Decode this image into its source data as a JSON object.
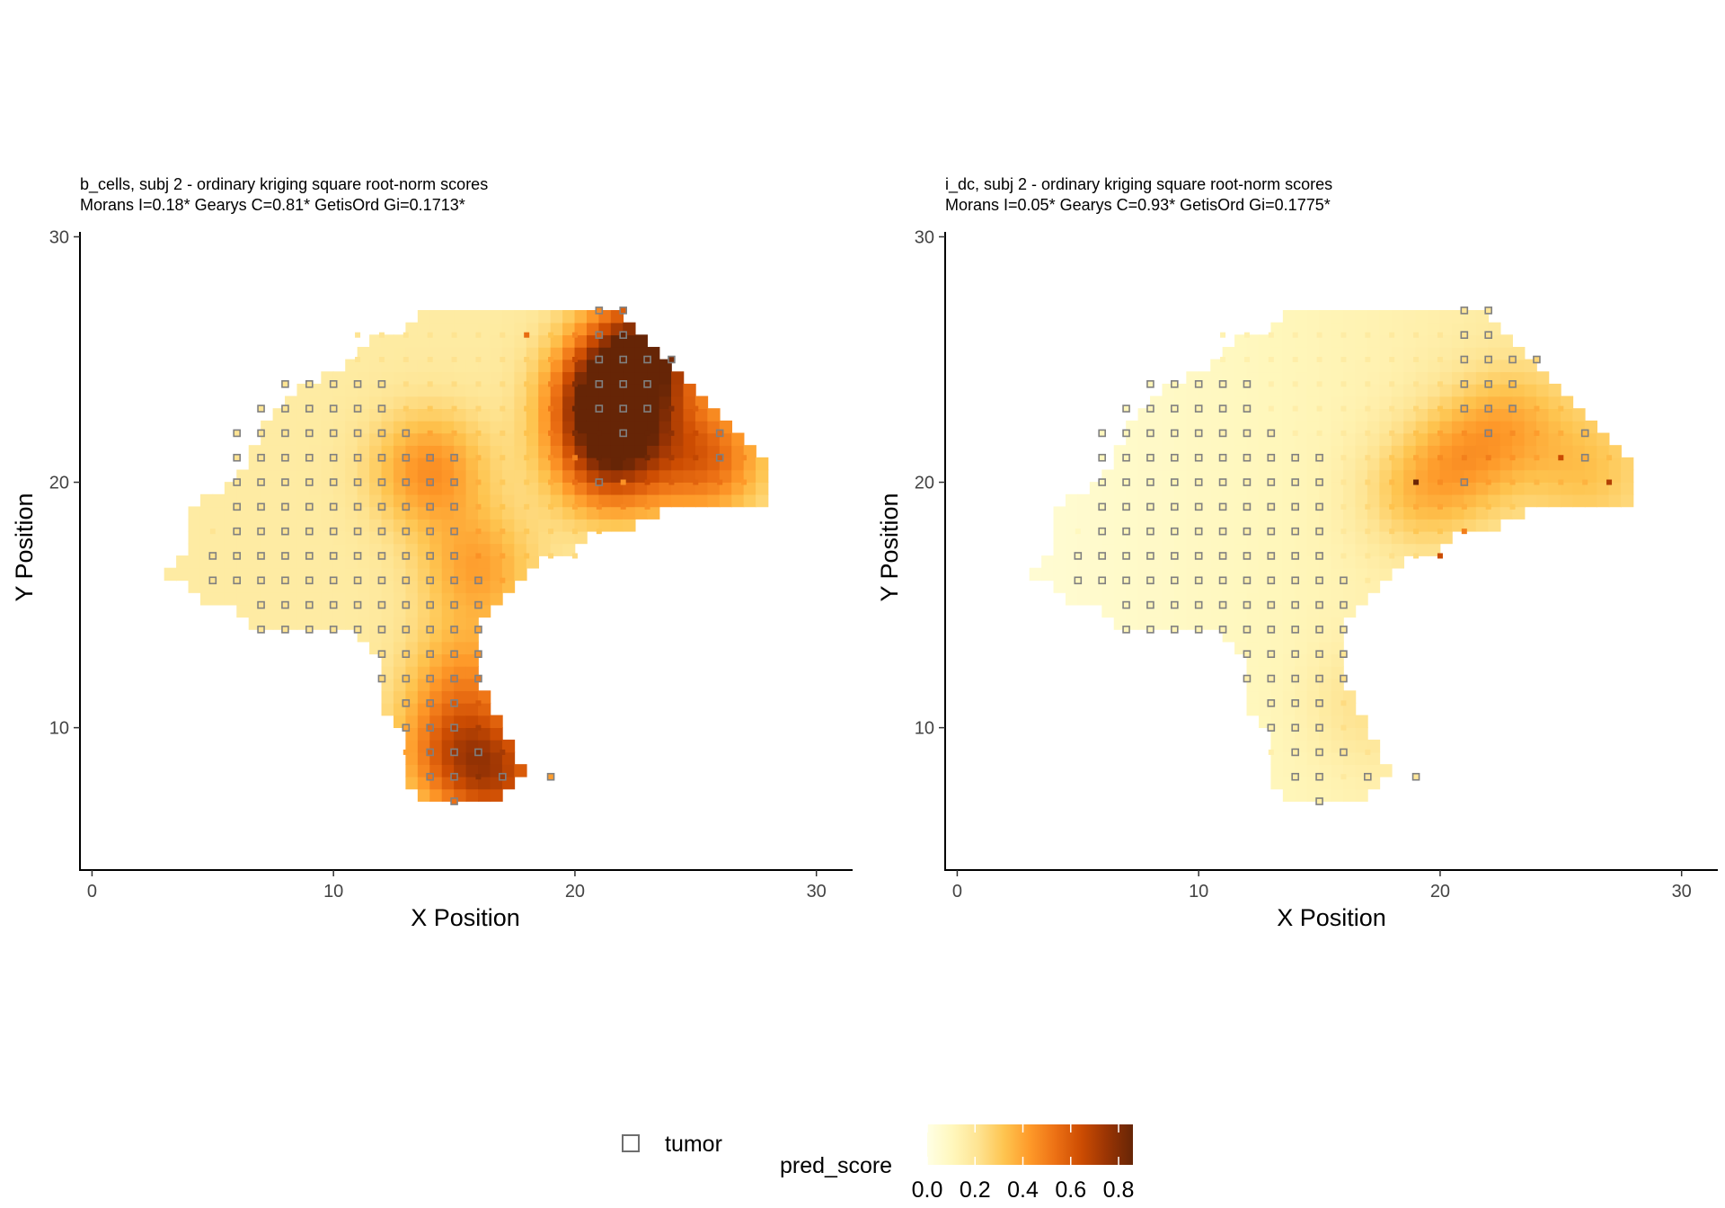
{
  "chart_data": [
    {
      "type": "heatmap",
      "title": "b_cells, subj 2 - ordinary kriging square root-norm scores",
      "subtitle": "Morans I=0.18*  Gearys C=0.81*  GetisOrd Gi=0.1713*",
      "xlabel": "X Position",
      "ylabel": "Y Position",
      "xlim": [
        -0.5,
        31.5
      ],
      "ylim": [
        4.2,
        30.2
      ],
      "xticks": [
        0,
        10,
        20,
        30
      ],
      "yticks": [
        10,
        20,
        30
      ],
      "grid": false,
      "hotspots": [
        {
          "x": 21.5,
          "y": 23.5,
          "value": 0.85
        },
        {
          "x": 21.5,
          "y": 21.0,
          "value": 0.65
        },
        {
          "x": 23.0,
          "y": 25.5,
          "value": 0.7
        },
        {
          "x": 25.5,
          "y": 21.0,
          "value": 0.55
        },
        {
          "x": 14.0,
          "y": 20.5,
          "value": 0.45
        },
        {
          "x": 16.0,
          "y": 16.5,
          "value": 0.4
        },
        {
          "x": 15.0,
          "y": 9.0,
          "value": 0.5
        },
        {
          "x": 17.0,
          "y": 8.0,
          "value": 0.55
        },
        {
          "x": 15.5,
          "y": 12.0,
          "value": 0.4
        }
      ],
      "hot_spots": [
        {
          "x": 18,
          "y": 26,
          "value": 0.55
        },
        {
          "x": 21,
          "y": 26,
          "value": 0.6
        },
        {
          "x": 20,
          "y": 21,
          "value": 0.5
        },
        {
          "x": 22,
          "y": 20,
          "value": 0.45
        }
      ]
    },
    {
      "type": "heatmap",
      "title": "i_dc, subj 2 - ordinary kriging square root-norm scores",
      "subtitle": "Morans I=0.05*  Gearys C=0.93*  GetisOrd Gi=0.1775*",
      "xlabel": "X Position",
      "ylabel": "Y Position",
      "xlim": [
        -0.5,
        31.5
      ],
      "ylim": [
        4.2,
        30.2
      ],
      "xticks": [
        0,
        10,
        20,
        30
      ],
      "yticks": [
        10,
        20,
        30
      ],
      "grid": false,
      "hotspots": [
        {
          "x": 21.0,
          "y": 21.0,
          "value": 0.28
        },
        {
          "x": 23.0,
          "y": 22.5,
          "value": 0.25
        },
        {
          "x": 19.0,
          "y": 19.5,
          "value": 0.25
        },
        {
          "x": 26.0,
          "y": 20.5,
          "value": 0.22
        },
        {
          "x": 17.0,
          "y": 11.0,
          "value": 0.18
        }
      ],
      "hot_spots": [
        {
          "x": 19,
          "y": 20,
          "value": 0.85
        },
        {
          "x": 25,
          "y": 21,
          "value": 0.65
        },
        {
          "x": 27,
          "y": 20,
          "value": 0.7
        },
        {
          "x": 20,
          "y": 17,
          "value": 0.65
        },
        {
          "x": 22,
          "y": 21,
          "value": 0.5
        },
        {
          "x": 21,
          "y": 18,
          "value": 0.5
        }
      ]
    }
  ],
  "region_outline": [
    [
      3,
      16
    ],
    [
      4,
      17
    ],
    [
      4,
      19
    ],
    [
      6,
      20
    ],
    [
      7,
      22
    ],
    [
      8,
      23
    ],
    [
      9,
      24
    ],
    [
      11,
      25
    ],
    [
      12,
      26
    ],
    [
      13,
      26
    ],
    [
      14,
      27
    ],
    [
      22,
      27
    ],
    [
      25,
      24
    ],
    [
      27,
      22
    ],
    [
      28,
      21
    ],
    [
      28,
      19
    ],
    [
      24,
      19
    ],
    [
      22,
      18
    ],
    [
      21,
      18
    ],
    [
      20,
      17
    ],
    [
      19,
      17
    ],
    [
      18,
      16
    ],
    [
      17,
      15
    ],
    [
      16,
      14
    ],
    [
      16,
      12
    ],
    [
      17,
      10
    ],
    [
      18,
      8
    ],
    [
      17,
      7
    ],
    [
      14,
      7
    ],
    [
      13,
      8
    ],
    [
      13,
      10
    ],
    [
      12,
      11
    ],
    [
      12,
      13
    ],
    [
      11,
      14
    ],
    [
      7,
      14
    ],
    [
      6,
      15
    ],
    [
      5,
      15
    ],
    [
      4,
      16
    ]
  ],
  "spots": {
    "rows": [
      {
        "y": 27,
        "xs": [
          21,
          22
        ]
      },
      {
        "y": 26,
        "xs": [
          11,
          12,
          13,
          14,
          15,
          16,
          17,
          18,
          19,
          20,
          21,
          22
        ]
      },
      {
        "y": 25,
        "xs": [
          11,
          12,
          13,
          14,
          15,
          16,
          17,
          18,
          19,
          20,
          21,
          22,
          23,
          24
        ]
      },
      {
        "y": 24,
        "xs": [
          8,
          9,
          10,
          11,
          12,
          13,
          14,
          15,
          16,
          17,
          18,
          19,
          20,
          21,
          22,
          23
        ]
      },
      {
        "y": 23,
        "xs": [
          7,
          8,
          9,
          10,
          11,
          12,
          13,
          14,
          15,
          16,
          17,
          18,
          19,
          20,
          21,
          22,
          23,
          24,
          25
        ]
      },
      {
        "y": 22,
        "xs": [
          6,
          7,
          8,
          9,
          10,
          11,
          12,
          13,
          14,
          15,
          16,
          17,
          18,
          19,
          20,
          21,
          22,
          23,
          24,
          25,
          26
        ]
      },
      {
        "y": 21,
        "xs": [
          6,
          7,
          8,
          9,
          10,
          11,
          12,
          13,
          14,
          15,
          16,
          17,
          18,
          19,
          20,
          21,
          22,
          23,
          24,
          25,
          26,
          27
        ]
      },
      {
        "y": 20,
        "xs": [
          6,
          7,
          8,
          9,
          10,
          11,
          12,
          13,
          14,
          15,
          16,
          17,
          18,
          19,
          20,
          21,
          22,
          23,
          24,
          25,
          26,
          27
        ]
      },
      {
        "y": 19,
        "xs": [
          6,
          7,
          8,
          9,
          10,
          11,
          12,
          13,
          14,
          15,
          16,
          17,
          18,
          19,
          20,
          21,
          22,
          23
        ]
      },
      {
        "y": 18,
        "xs": [
          5,
          6,
          7,
          8,
          9,
          10,
          11,
          12,
          13,
          14,
          15,
          16,
          17,
          18,
          19,
          20,
          21
        ]
      },
      {
        "y": 17,
        "xs": [
          5,
          6,
          7,
          8,
          9,
          10,
          11,
          12,
          13,
          14,
          15,
          16,
          17,
          18,
          19,
          20
        ]
      },
      {
        "y": 16,
        "xs": [
          5,
          6,
          7,
          8,
          9,
          10,
          11,
          12,
          13,
          14,
          15,
          16,
          17
        ]
      },
      {
        "y": 15,
        "xs": [
          7,
          8,
          9,
          10,
          11,
          12,
          13,
          14,
          15,
          16
        ]
      },
      {
        "y": 14,
        "xs": [
          7,
          8,
          9,
          10,
          11,
          12,
          13,
          14,
          15,
          16
        ]
      },
      {
        "y": 13,
        "xs": [
          12,
          13,
          14,
          15,
          16
        ]
      },
      {
        "y": 12,
        "xs": [
          12,
          13,
          14,
          15,
          16
        ]
      },
      {
        "y": 11,
        "xs": [
          13,
          14,
          15,
          16
        ]
      },
      {
        "y": 10,
        "xs": [
          13,
          14,
          15,
          16
        ]
      },
      {
        "y": 9,
        "xs": [
          13,
          14,
          15,
          16,
          17
        ]
      },
      {
        "y": 8,
        "xs": [
          14,
          15,
          16,
          17,
          19
        ]
      },
      {
        "y": 7,
        "xs": [
          15
        ]
      }
    ],
    "tumor": [
      [
        21,
        27
      ],
      [
        22,
        27
      ],
      [
        21,
        26
      ],
      [
        22,
        26
      ],
      [
        21,
        25
      ],
      [
        22,
        25
      ],
      [
        23,
        25
      ],
      [
        24,
        25
      ],
      [
        8,
        24
      ],
      [
        9,
        24
      ],
      [
        10,
        24
      ],
      [
        11,
        24
      ],
      [
        12,
        24
      ],
      [
        21,
        24
      ],
      [
        22,
        24
      ],
      [
        23,
        24
      ],
      [
        7,
        23
      ],
      [
        8,
        23
      ],
      [
        9,
        23
      ],
      [
        10,
        23
      ],
      [
        11,
        23
      ],
      [
        12,
        23
      ],
      [
        21,
        23
      ],
      [
        22,
        23
      ],
      [
        23,
        23
      ],
      [
        6,
        22
      ],
      [
        7,
        22
      ],
      [
        8,
        22
      ],
      [
        9,
        22
      ],
      [
        10,
        22
      ],
      [
        11,
        22
      ],
      [
        12,
        22
      ],
      [
        13,
        22
      ],
      [
        22,
        22
      ],
      [
        26,
        22
      ],
      [
        6,
        21
      ],
      [
        7,
        21
      ],
      [
        8,
        21
      ],
      [
        9,
        21
      ],
      [
        10,
        21
      ],
      [
        11,
        21
      ],
      [
        12,
        21
      ],
      [
        13,
        21
      ],
      [
        14,
        21
      ],
      [
        15,
        21
      ],
      [
        26,
        21
      ],
      [
        6,
        20
      ],
      [
        7,
        20
      ],
      [
        8,
        20
      ],
      [
        9,
        20
      ],
      [
        10,
        20
      ],
      [
        11,
        20
      ],
      [
        12,
        20
      ],
      [
        13,
        20
      ],
      [
        14,
        20
      ],
      [
        15,
        20
      ],
      [
        21,
        20
      ],
      [
        6,
        19
      ],
      [
        7,
        19
      ],
      [
        8,
        19
      ],
      [
        9,
        19
      ],
      [
        10,
        19
      ],
      [
        11,
        19
      ],
      [
        12,
        19
      ],
      [
        13,
        19
      ],
      [
        14,
        19
      ],
      [
        15,
        19
      ],
      [
        6,
        18
      ],
      [
        7,
        18
      ],
      [
        8,
        18
      ],
      [
        9,
        18
      ],
      [
        10,
        18
      ],
      [
        11,
        18
      ],
      [
        12,
        18
      ],
      [
        13,
        18
      ],
      [
        14,
        18
      ],
      [
        15,
        18
      ],
      [
        5,
        17
      ],
      [
        6,
        17
      ],
      [
        7,
        17
      ],
      [
        8,
        17
      ],
      [
        9,
        17
      ],
      [
        10,
        17
      ],
      [
        11,
        17
      ],
      [
        12,
        17
      ],
      [
        13,
        17
      ],
      [
        14,
        17
      ],
      [
        15,
        17
      ],
      [
        5,
        16
      ],
      [
        6,
        16
      ],
      [
        7,
        16
      ],
      [
        8,
        16
      ],
      [
        9,
        16
      ],
      [
        10,
        16
      ],
      [
        11,
        16
      ],
      [
        12,
        16
      ],
      [
        13,
        16
      ],
      [
        14,
        16
      ],
      [
        15,
        16
      ],
      [
        16,
        16
      ],
      [
        7,
        15
      ],
      [
        8,
        15
      ],
      [
        9,
        15
      ],
      [
        10,
        15
      ],
      [
        11,
        15
      ],
      [
        12,
        15
      ],
      [
        13,
        15
      ],
      [
        14,
        15
      ],
      [
        15,
        15
      ],
      [
        16,
        15
      ],
      [
        7,
        14
      ],
      [
        8,
        14
      ],
      [
        9,
        14
      ],
      [
        10,
        14
      ],
      [
        11,
        14
      ],
      [
        12,
        14
      ],
      [
        13,
        14
      ],
      [
        14,
        14
      ],
      [
        15,
        14
      ],
      [
        16,
        14
      ],
      [
        12,
        13
      ],
      [
        13,
        13
      ],
      [
        14,
        13
      ],
      [
        15,
        13
      ],
      [
        16,
        13
      ],
      [
        12,
        12
      ],
      [
        13,
        12
      ],
      [
        14,
        12
      ],
      [
        15,
        12
      ],
      [
        16,
        12
      ],
      [
        13,
        11
      ],
      [
        14,
        11
      ],
      [
        15,
        11
      ],
      [
        13,
        10
      ],
      [
        14,
        10
      ],
      [
        15,
        10
      ],
      [
        14,
        9
      ],
      [
        15,
        9
      ],
      [
        16,
        9
      ],
      [
        14,
        8
      ],
      [
        15,
        8
      ],
      [
        17,
        8
      ],
      [
        19,
        8
      ],
      [
        15,
        7
      ]
    ]
  },
  "legend": {
    "shape_label": "tumor",
    "fill_title": "pred_score",
    "fill_ticks": [
      "0.0",
      "0.2",
      "0.4",
      "0.6",
      "0.8"
    ],
    "fill_range": [
      0.0,
      0.86
    ],
    "colors": [
      "#ffffe5",
      "#fff7bc",
      "#fee391",
      "#fec44f",
      "#fe9929",
      "#ec7014",
      "#cc4c02",
      "#993404",
      "#662506"
    ]
  }
}
